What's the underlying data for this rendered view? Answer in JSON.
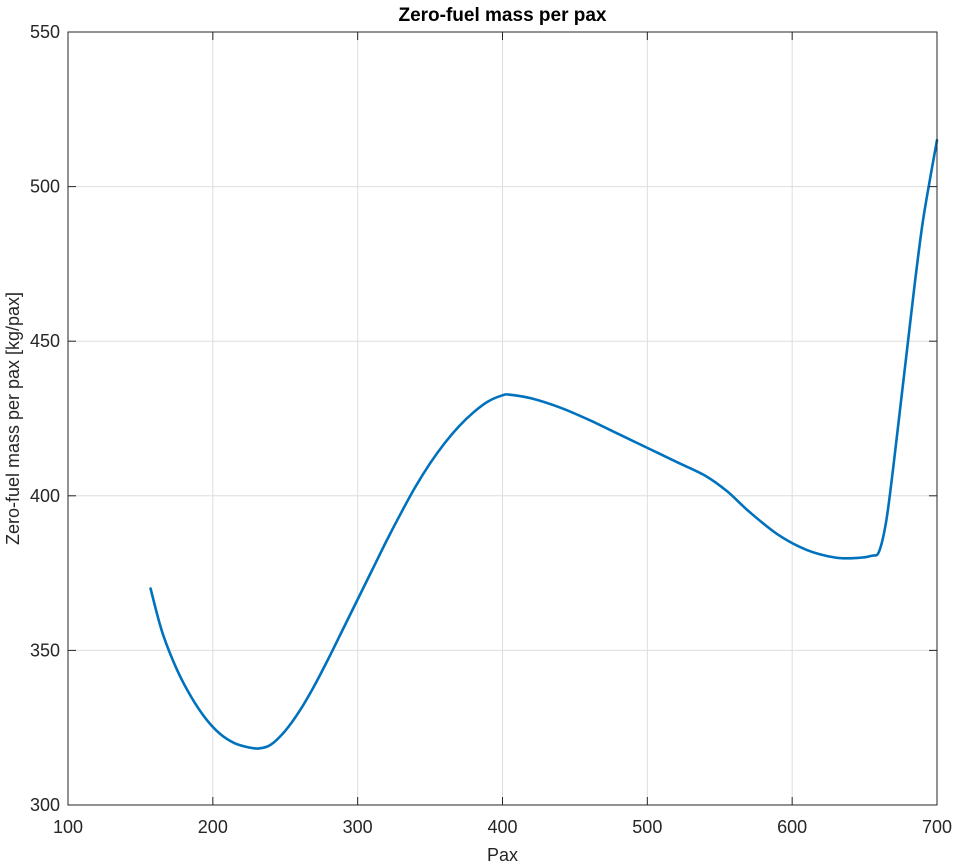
{
  "chart_data": {
    "type": "line",
    "title": "Zero-fuel mass per pax",
    "xlabel": "Pax",
    "ylabel": "Zero-fuel mass per pax [kg/pax]",
    "xlim": [
      100,
      700
    ],
    "ylim": [
      300,
      550
    ],
    "xticks": [
      100,
      200,
      300,
      400,
      500,
      600,
      700
    ],
    "yticks": [
      300,
      350,
      400,
      450,
      500,
      550
    ],
    "xtick_labels": [
      "100",
      "200",
      "300",
      "400",
      "500",
      "600",
      "700"
    ],
    "ytick_labels": [
      "300",
      "350",
      "400",
      "450",
      "500",
      "550"
    ],
    "grid": true,
    "box": true,
    "colors": {
      "line": "#0072BD",
      "axis": "#262626",
      "grid": "#dedede"
    },
    "series": [
      {
        "x": [
          157,
          165,
          175,
          185,
          195,
          205,
          215,
          225,
          232,
          240,
          250,
          260,
          270,
          280,
          290,
          300,
          310,
          320,
          330,
          340,
          350,
          360,
          370,
          380,
          390,
          400,
          405,
          420,
          440,
          460,
          480,
          500,
          520,
          540,
          555,
          570,
          590,
          610,
          630,
          645,
          655,
          660,
          665,
          670,
          675,
          680,
          685,
          690,
          695,
          700
        ],
        "y": [
          370,
          356,
          344,
          335,
          328,
          323,
          320,
          318.6,
          318.3,
          319.5,
          324,
          330.5,
          338.5,
          347.5,
          357,
          366.5,
          376,
          385.5,
          394.5,
          403,
          410.5,
          417,
          422.5,
          427,
          430.5,
          432.5,
          432.7,
          431.5,
          428.5,
          424.5,
          420,
          415.5,
          411,
          406.5,
          401.5,
          395,
          387.5,
          382.5,
          380,
          379.9,
          380.6,
          382,
          392,
          410,
          430,
          450,
          470,
          488,
          502,
          515
        ]
      }
    ]
  }
}
